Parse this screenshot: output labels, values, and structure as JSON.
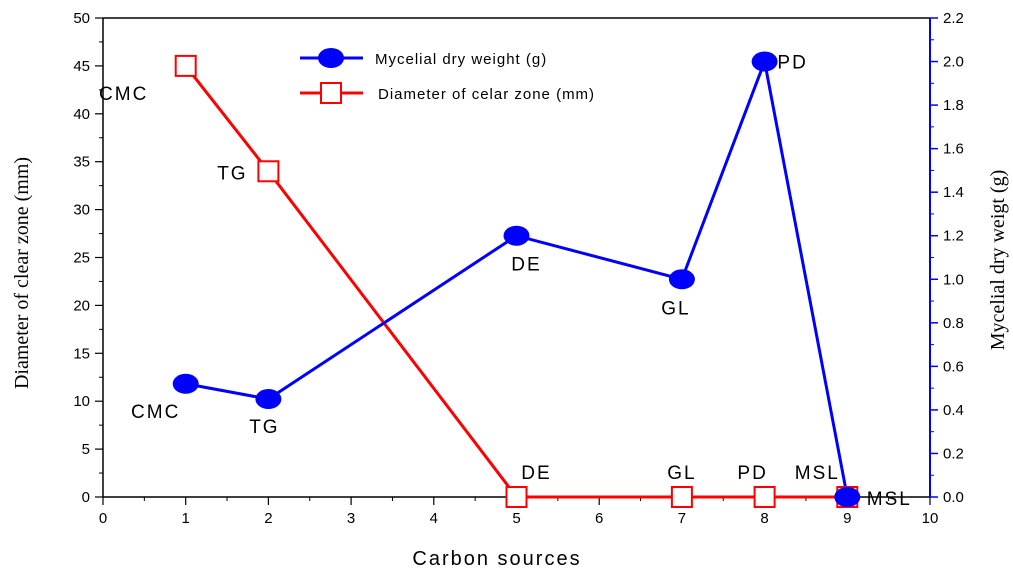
{
  "chart_data": {
    "type": "line",
    "xlabel": "Carbon sources",
    "ylabel_left": "Diameter of clear zone (mm)",
    "ylabel_right": "Mycelial dry weigt (g)",
    "xlim": [
      0,
      10
    ],
    "ylim_left": [
      0,
      50
    ],
    "ylim_right": [
      0,
      2.2
    ],
    "x_ticks": [
      "0",
      "1",
      "2",
      "3",
      "4",
      "5",
      "6",
      "7",
      "8",
      "9",
      "10"
    ],
    "y_left_ticks": [
      "0",
      "5",
      "10",
      "15",
      "20",
      "25",
      "30",
      "35",
      "40",
      "45",
      "50"
    ],
    "y_right_ticks": [
      "0.0",
      "0.2",
      "0.4",
      "0.6",
      "0.8",
      "1.0",
      "1.2",
      "1.4",
      "1.6",
      "1.8",
      "2.0",
      "2.2"
    ],
    "grid": false,
    "legend_position": "top-center",
    "series": [
      {
        "name": "Mycelial dry weight (g)",
        "axis": "right",
        "color": "#0000ff",
        "marker": "filled-circle",
        "x": [
          1,
          2,
          5,
          7,
          8,
          9
        ],
        "values": [
          0.52,
          0.45,
          1.2,
          1.0,
          2.0,
          0.0
        ],
        "point_labels": [
          "CMC",
          "TG",
          "DE",
          "GL",
          "PD",
          "MSL"
        ]
      },
      {
        "name": "Diameter of celar zone (mm)",
        "axis": "left",
        "color": "#ff0000",
        "marker": "open-square",
        "x": [
          1,
          2,
          5,
          7,
          8,
          9
        ],
        "values": [
          45,
          34,
          0,
          0,
          0,
          0
        ],
        "point_labels": [
          "CMC",
          "TG",
          "DE",
          "GL",
          "PD",
          "MSL"
        ]
      }
    ]
  }
}
